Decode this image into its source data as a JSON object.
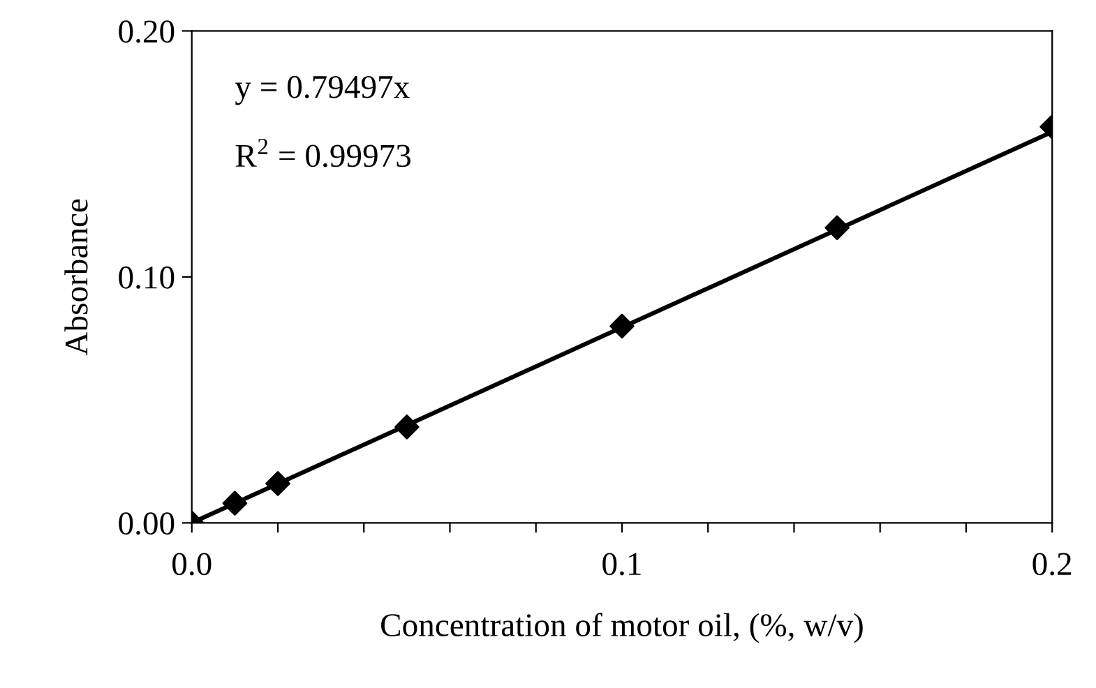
{
  "chart_data": {
    "type": "scatter",
    "xlabel": "Concentration of motor oil, (%, w/v)",
    "ylabel": "Absorbance",
    "annotations": [
      "y = 0.79497x",
      "R$^{2}$ = 0.99973"
    ],
    "x": [
      0,
      0.01,
      0.02,
      0.05,
      0.1,
      0.15,
      0.2
    ],
    "series": [
      {
        "color": "#000000",
        "marker": "diamond",
        "values": [
          0,
          0.008,
          0.016,
          0.039,
          0.08,
          0.12,
          0.161
        ]
      },
      {
        "type": "line",
        "color": "#000000",
        "line_style": "solid",
        "x": [
          0,
          0.2
        ],
        "values": [
          0,
          0.159
        ]
      }
    ],
    "xlim": [
      0,
      0.2
    ],
    "ylim": [
      0,
      0.2
    ],
    "xticks": [
      {
        "value": 0,
        "label": "0.0"
      },
      {
        "value": 0.02,
        "label": null
      },
      {
        "value": 0.04,
        "label": null
      },
      {
        "value": 0.06,
        "label": null
      },
      {
        "value": 0.08,
        "label": null
      },
      {
        "value": 0.1,
        "label": "0.1"
      },
      {
        "value": 0.12,
        "label": null
      },
      {
        "value": 0.14,
        "label": null
      },
      {
        "value": 0.16,
        "label": null
      },
      {
        "value": 0.18,
        "label": null
      },
      {
        "value": 0.2,
        "label": "0.2"
      }
    ],
    "yticks": [
      {
        "value": 0,
        "label": "0.00"
      },
      {
        "value": 0.1,
        "label": "0.10"
      },
      {
        "value": 0.2,
        "label": "0.20"
      }
    ],
    "grid": false,
    "legend": false
  }
}
